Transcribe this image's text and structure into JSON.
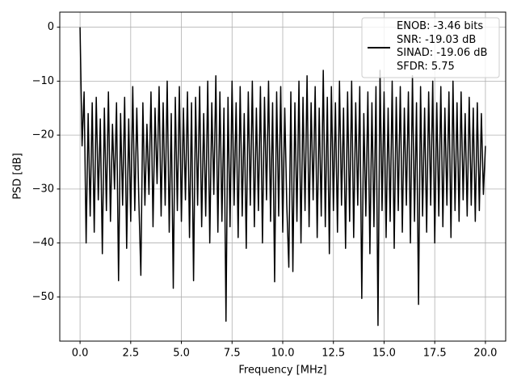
{
  "chart_data": {
    "type": "line",
    "xlabel": "Frequency [MHz]",
    "ylabel": "PSD [dB]",
    "xlim": [
      -1,
      21
    ],
    "ylim": [
      -58.2,
      2.8
    ],
    "xticks": [
      {
        "value": 0,
        "label": "0.0"
      },
      2.5,
      {
        "value": 5,
        "label": "5.0"
      },
      7.5,
      {
        "value": 10,
        "label": "10.0"
      },
      12.5,
      {
        "value": 15,
        "label": "15.0"
      },
      17.5,
      {
        "value": 20,
        "label": "20.0"
      }
    ],
    "yticks": [
      {
        "value": -50,
        "label": "−50"
      },
      {
        "value": -40,
        "label": "−40"
      },
      {
        "value": -30,
        "label": "−30"
      },
      {
        "value": -20,
        "label": "−20"
      },
      {
        "value": -10,
        "label": "−10"
      },
      0
    ],
    "grid": true,
    "legend": "upper right",
    "x": [
      0.0,
      0.1,
      0.2,
      0.3,
      0.4,
      0.5,
      0.6,
      0.7,
      0.8,
      0.9,
      1.0,
      1.1,
      1.2,
      1.3,
      1.4,
      1.5,
      1.6,
      1.7,
      1.8,
      1.9,
      2.0,
      2.1,
      2.2,
      2.3,
      2.4,
      2.5,
      2.6,
      2.7,
      2.8,
      2.9,
      3.0,
      3.1,
      3.2,
      3.3,
      3.4,
      3.5,
      3.6,
      3.7,
      3.8,
      3.9,
      4.0,
      4.1,
      4.2,
      4.3,
      4.4,
      4.5,
      4.6,
      4.7,
      4.8,
      4.9,
      5.0,
      5.1,
      5.2,
      5.3,
      5.4,
      5.5,
      5.6,
      5.7,
      5.8,
      5.9,
      6.0,
      6.1,
      6.2,
      6.3,
      6.4,
      6.5,
      6.6,
      6.7,
      6.8,
      6.9,
      7.0,
      7.1,
      7.2,
      7.3,
      7.4,
      7.5,
      7.6,
      7.7,
      7.8,
      7.9,
      8.0,
      8.1,
      8.2,
      8.3,
      8.4,
      8.5,
      8.6,
      8.7,
      8.8,
      8.9,
      9.0,
      9.1,
      9.2,
      9.3,
      9.4,
      9.5,
      9.6,
      9.7,
      9.8,
      9.9,
      10.0,
      10.1,
      10.2,
      10.3,
      10.4,
      10.5,
      10.6,
      10.7,
      10.8,
      10.9,
      11.0,
      11.1,
      11.2,
      11.3,
      11.4,
      11.5,
      11.6,
      11.7,
      11.8,
      11.9,
      12.0,
      12.1,
      12.2,
      12.3,
      12.4,
      12.5,
      12.6,
      12.7,
      12.8,
      12.9,
      13.0,
      13.1,
      13.2,
      13.3,
      13.4,
      13.5,
      13.6,
      13.7,
      13.8,
      13.9,
      14.0,
      14.1,
      14.2,
      14.3,
      14.4,
      14.5,
      14.6,
      14.7,
      14.8,
      14.9,
      15.0,
      15.1,
      15.2,
      15.3,
      15.4,
      15.5,
      15.6,
      15.7,
      15.8,
      15.9,
      16.0,
      16.1,
      16.2,
      16.3,
      16.4,
      16.5,
      16.6,
      16.7,
      16.8,
      16.9,
      17.0,
      17.1,
      17.2,
      17.3,
      17.4,
      17.5,
      17.6,
      17.7,
      17.8,
      17.9,
      18.0,
      18.1,
      18.2,
      18.3,
      18.4,
      18.5,
      18.6,
      18.7,
      18.8,
      18.9,
      19.0,
      19.1,
      19.2,
      19.3,
      19.4,
      19.5,
      19.6,
      19.7,
      19.8,
      19.9,
      20.0
    ],
    "series": [
      {
        "name": "ENOB: -3.46 bits\nSNR: -19.03 dB\nSINAD: -19.06 dB\nSFDR: 5.75",
        "color": "#000000",
        "values": [
          0,
          -22,
          -12,
          -40,
          -16,
          -35,
          -14,
          -38,
          -13,
          -32,
          -17,
          -42,
          -15,
          -34,
          -12,
          -36,
          -18,
          -30,
          -14,
          -47,
          -16,
          -33,
          -13,
          -41,
          -17,
          -36,
          -11,
          -34,
          -15,
          -32,
          -46,
          -14,
          -33,
          -18,
          -31,
          -12,
          -37,
          -15,
          -29,
          -11,
          -35,
          -14,
          -33,
          -10,
          -38,
          -16,
          -48.4,
          -13,
          -34,
          -11,
          -36,
          -15,
          -32,
          -12,
          -39,
          -14,
          -47,
          -13,
          -33,
          -11,
          -37,
          -16,
          -35,
          -10,
          -40,
          -14,
          -31,
          -9,
          -38,
          -12,
          -36,
          -15,
          -54.5,
          -13,
          -37,
          -10,
          -33,
          -14,
          -39,
          -11,
          -35,
          -16,
          -41,
          -12,
          -33,
          -10,
          -37,
          -15,
          -34,
          -11,
          -40,
          -13,
          -32,
          -10,
          -36,
          -14,
          -47.2,
          -12,
          -35,
          -11,
          -38,
          -15,
          -33,
          -44.5,
          -12,
          -45.3,
          -14,
          -36,
          -10,
          -40,
          -13,
          -34,
          -9,
          -37,
          -14,
          -32,
          -11,
          -39,
          -15,
          -35,
          -8,
          -37,
          -13,
          -42,
          -11,
          -34,
          -14,
          -38,
          -10,
          -33,
          -15,
          -41,
          -12,
          -36,
          -10,
          -39,
          -14,
          -33,
          -11,
          -50.3,
          -16,
          -35,
          -12,
          -42,
          -14,
          -37,
          -11,
          -55.3,
          -8,
          -34,
          -12,
          -39,
          -15,
          -36,
          -10,
          -41,
          -13,
          -34,
          -11,
          -38,
          -15,
          -33,
          -12,
          -40,
          -9,
          -36,
          -14,
          -51.4,
          -11,
          -35,
          -15,
          -38,
          -12,
          -33,
          -10,
          -40,
          -14,
          -35,
          -11,
          -37,
          -15,
          -33,
          -12,
          -39,
          -10,
          -34,
          -14,
          -36,
          -12,
          -32,
          -16,
          -35,
          -13,
          -33,
          -15,
          -36,
          -14,
          -34,
          -16,
          -31,
          -22
        ]
      }
    ]
  }
}
